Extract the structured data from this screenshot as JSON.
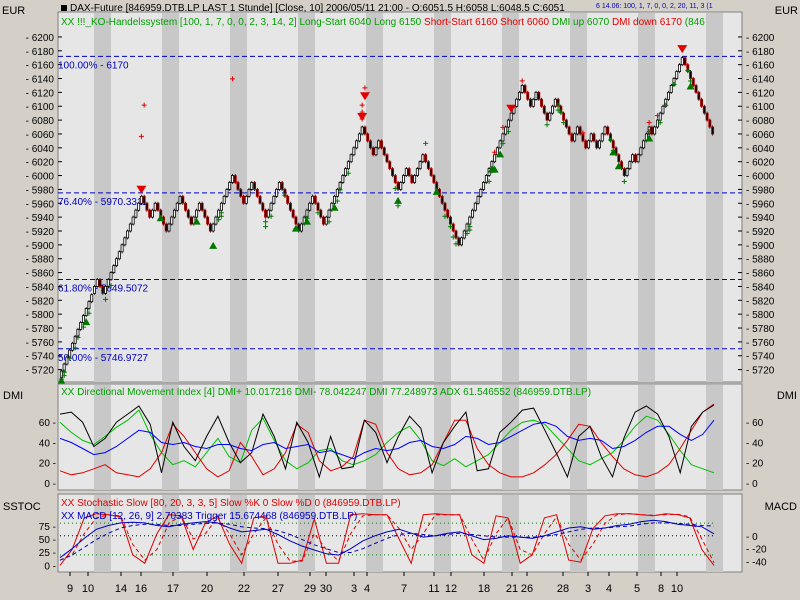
{
  "colors": {
    "background": "#d4d0c8",
    "panel": "#e6e6e6",
    "band": "#c8c8c8",
    "up": "#000000",
    "down": "#c00000",
    "buy": "#007800",
    "sell": "#e00000",
    "dmi_plus": "#00c000",
    "dmi_minus": "#e00000",
    "dmi": "#000000",
    "adx": "#0000ff",
    "fib": "#0000c0",
    "sstoc_k": "#e00000",
    "macd": "#0000c0"
  },
  "header": {
    "currency_left": "EUR",
    "currency_right": "EUR",
    "title": "DAX-Future [846959.DTB.LP LAST 1 Stunde] [Close, 10] 2006/05/11 21:00 - O:6051.5 H:6058 L:6048.5 C:6051",
    "indicator_line": [
      {
        "text": "XX !!!_KO-Handelssystem [100, 1, 7, 0, 0, 2, 3, 14, 2]",
        "color": "#00a000"
      },
      {
        "text": "Long-Start 6040",
        "color": "#00a000"
      },
      {
        "text": "Long 6150",
        "color": "#00a000"
      },
      {
        "text": "Short-Start 6160",
        "color": "#e00000"
      },
      {
        "text": "Short 6060",
        "color": "#e00000"
      },
      {
        "text": "DMI up 6070",
        "color": "#00a000"
      },
      {
        "text": "DMI down 6170",
        "color": "#e00000"
      },
      {
        "text": "(846",
        "color": "#00a000"
      }
    ],
    "small_tag": "6 14.06: 100, 1, 7, 0, 0, 2, 20, 11, 3 (1"
  },
  "chart_data": [
    {
      "type": "renko-price",
      "name": "DAX-Future 846959.DTB.LP",
      "ylim": [
        5705,
        6210
      ],
      "y_ticks": [
        5720,
        5740,
        5760,
        5780,
        5800,
        5820,
        5840,
        5860,
        5880,
        5900,
        5920,
        5940,
        5960,
        5980,
        6000,
        6020,
        6040,
        6060,
        6080,
        6100,
        6120,
        6140,
        6160,
        6180,
        6200
      ],
      "brick_size": 10,
      "pivots": [
        5708,
        5830,
        5850,
        5830,
        5970,
        5940,
        5960,
        5920,
        5970,
        5930,
        5960,
        5920,
        5990,
        6000,
        5960,
        5990,
        5970,
        5940,
        5990,
        5920,
        5970,
        5930,
        6010,
        6070,
        6030,
        6050,
        5980,
        6010,
        5990,
        6030,
        5950,
        5920,
        5900,
        5930,
        6000,
        6050,
        6130,
        6100,
        6120,
        6080,
        6110,
        6050,
        6070,
        6040,
        6060,
        6040,
        6070,
        6000,
        6030,
        6020,
        6070,
        6060,
        6140,
        6150,
        6170,
        6120,
        6080,
        6060
      ],
      "fib_levels": [
        {
          "label": "100.00% - 6170",
          "value": 6172
        },
        {
          "label": "76.40% - 5970.3311",
          "value": 5975
        },
        {
          "label": "61.80% - 5849.5072",
          "value": 5850
        },
        {
          "label": "50.00% - 5746.9727",
          "value": 5750
        }
      ],
      "buy_markers_price": [
        5712,
        5715,
        5720,
        5725,
        5725,
        5745,
        5760,
        5775,
        5790,
        5810,
        5830,
        5850,
        5955,
        5945,
        5950,
        5935,
        5942,
        5950,
        5980,
        5932,
        5947,
        5955,
        5972,
        5988,
        6012,
        5990,
        5942,
        5965,
        5950,
        5935,
        6055,
        5910,
        5920,
        5925,
        5930,
        5935,
        6000,
        6015,
        6055,
        6072,
        6082,
        6103,
        6100,
        6085,
        6110,
        6000,
        6045,
        6060,
        6072,
        6085,
        6110,
        6140,
        6145,
        6160
      ],
      "buy_triangles_price": [
        5715,
        5800,
        5950,
        5945,
        5910,
        5935,
        5945,
        5965,
        5975,
        5988,
        6020,
        6042,
        6020,
        6025,
        6045,
        6065,
        6140
      ],
      "sell_markers_price": [
        6045,
        6090,
        6128,
        6070,
        6080,
        6090,
        6115,
        6125,
        6058,
        6022,
        6050,
        6065,
        6075
      ],
      "sell_triangles_price": [
        5965,
        6070,
        6100,
        6082,
        6168
      ]
    },
    {
      "type": "line",
      "name": "DMI panel",
      "title": "XX Directional Movement Index [4] DMI+ 10.017216 DMI- 78.042247 DMI 77.248973 ADX 61.546552 (846959.DTB.LP)",
      "ylim": [
        -5,
        80
      ],
      "y_ticks": [
        0,
        20,
        40,
        60
      ],
      "series": [
        {
          "name": "DMI+",
          "color": "#00c000",
          "values": [
            60,
            50,
            42,
            38,
            46,
            55,
            62,
            72,
            48,
            30,
            18,
            22,
            16,
            30,
            44,
            26,
            20,
            52,
            64,
            42,
            22,
            14,
            20,
            32,
            34,
            22,
            18,
            22,
            28,
            40,
            50,
            56,
            42,
            22,
            17,
            24,
            16,
            22,
            28,
            40,
            52,
            60,
            62,
            58,
            46,
            34,
            22,
            18,
            24,
            30,
            42,
            56,
            66,
            62,
            48,
            32,
            18,
            14,
            10
          ]
        },
        {
          "name": "DMI-",
          "color": "#e00000",
          "values": [
            12,
            8,
            10,
            14,
            18,
            10,
            8,
            6,
            14,
            30,
            58,
            46,
            30,
            14,
            6,
            12,
            40,
            26,
            8,
            14,
            30,
            58,
            50,
            22,
            12,
            16,
            26,
            62,
            58,
            30,
            14,
            8,
            10,
            18,
            40,
            62,
            62,
            34,
            18,
            10,
            6,
            6,
            10,
            18,
            28,
            42,
            58,
            56,
            40,
            26,
            14,
            8,
            6,
            10,
            18,
            34,
            52,
            70,
            78
          ]
        },
        {
          "name": "DMI",
          "color": "#000000",
          "values": [
            68,
            70,
            60,
            36,
            44,
            60,
            68,
            76,
            58,
            10,
            60,
            36,
            22,
            46,
            66,
            40,
            20,
            30,
            68,
            46,
            14,
            60,
            40,
            6,
            46,
            14,
            16,
            62,
            50,
            20,
            46,
            66,
            54,
            10,
            40,
            56,
            70,
            12,
            14,
            50,
            60,
            72,
            74,
            52,
            30,
            6,
            46,
            56,
            26,
            6,
            44,
            70,
            76,
            68,
            46,
            10,
            56,
            70,
            77
          ]
        },
        {
          "name": "ADX",
          "color": "#0000ff",
          "values": [
            44,
            40,
            34,
            28,
            30,
            36,
            44,
            52,
            50,
            40,
            38,
            40,
            36,
            34,
            38,
            38,
            34,
            32,
            38,
            40,
            34,
            36,
            38,
            30,
            32,
            28,
            24,
            30,
            34,
            32,
            34,
            40,
            42,
            36,
            34,
            38,
            46,
            44,
            38,
            40,
            46,
            52,
            58,
            60,
            56,
            46,
            42,
            44,
            42,
            34,
            36,
            42,
            50,
            56,
            56,
            48,
            42,
            48,
            62
          ]
        }
      ]
    },
    {
      "type": "line",
      "name": "SSTOC / MACD panel",
      "title_sstoc": "XX Stochastic Slow [80, 20, 3, 3, 5] Slow %K 0 Slow %D 0 (846959.DTB.LP)",
      "title_macd": "XX MACD [12, 26, 9] 2.70383 Trigger 15.674468 (846959.DTB.LP)",
      "sstoc_ylim": [
        -5,
        105
      ],
      "sstoc_ticks": [
        0,
        25,
        50,
        75
      ],
      "macd_ylim": [
        -50,
        40
      ],
      "macd_ticks": [
        -40,
        -20,
        0
      ],
      "series": [
        {
          "name": "Slow %K",
          "color": "#e00000",
          "dashed": false,
          "values": [
            0,
            30,
            90,
            98,
            96,
            92,
            20,
            4,
            60,
            96,
            94,
            30,
            80,
            94,
            40,
            4,
            90,
            94,
            4,
            4,
            10,
            88,
            4,
            4,
            96,
            98,
            96,
            96,
            50,
            4,
            96,
            98,
            96,
            96,
            20,
            4,
            94,
            90,
            4,
            20,
            90,
            96,
            10,
            6,
            70,
            94,
            98,
            98,
            96,
            94,
            98,
            96,
            90,
            30,
            0
          ]
        },
        {
          "name": "Slow %D",
          "color": "#e00000",
          "dashed": true,
          "values": [
            10,
            20,
            60,
            90,
            96,
            94,
            40,
            10,
            30,
            80,
            94,
            50,
            60,
            90,
            60,
            20,
            60,
            90,
            40,
            8,
            8,
            60,
            30,
            8,
            60,
            94,
            96,
            96,
            70,
            30,
            60,
            96,
            96,
            96,
            50,
            10,
            60,
            90,
            30,
            20,
            60,
            92,
            40,
            10,
            40,
            80,
            96,
            98,
            96,
            95,
            96,
            97,
            92,
            50,
            5
          ]
        },
        {
          "name": "MACD",
          "color": "#0000c0",
          "dashed": false,
          "values": [
            -34,
            -20,
            -4,
            10,
            16,
            20,
            21,
            20,
            16,
            14,
            18,
            20,
            22,
            20,
            12,
            6,
            8,
            10,
            2,
            -8,
            -16,
            -22,
            -28,
            -30,
            -20,
            -8,
            0,
            6,
            10,
            4,
            -2,
            0,
            4,
            6,
            0,
            -6,
            -4,
            0,
            -2,
            -4,
            0,
            6,
            12,
            14,
            10,
            12,
            16,
            18,
            22,
            24,
            22,
            18,
            16,
            14,
            3
          ]
        },
        {
          "name": "Trigger",
          "color": "#0000c0",
          "dashed": true,
          "values": [
            -38,
            -30,
            -18,
            -6,
            4,
            12,
            16,
            18,
            18,
            16,
            16,
            18,
            19,
            20,
            18,
            14,
            12,
            11,
            8,
            2,
            -6,
            -14,
            -20,
            -26,
            -26,
            -20,
            -12,
            -4,
            2,
            4,
            2,
            0,
            2,
            4,
            2,
            0,
            -2,
            -2,
            -2,
            -2,
            -1,
            2,
            6,
            10,
            12,
            12,
            14,
            15,
            18,
            20,
            20,
            19,
            18,
            16,
            15
          ]
        }
      ]
    }
  ],
  "panels": {
    "dmi_label_left": "DMI",
    "dmi_label_right": "DMI",
    "sstoc_label": "SSTOC",
    "macd_label": "MACD"
  },
  "x_axis": {
    "labels": [
      "9",
      "10",
      "14",
      "16",
      "17",
      "20",
      "22",
      "27",
      "29",
      "30",
      "3",
      "4",
      "7",
      "11",
      "12",
      "18",
      "21",
      "26",
      "28",
      "3",
      "4",
      "5",
      "8",
      "10"
    ]
  }
}
